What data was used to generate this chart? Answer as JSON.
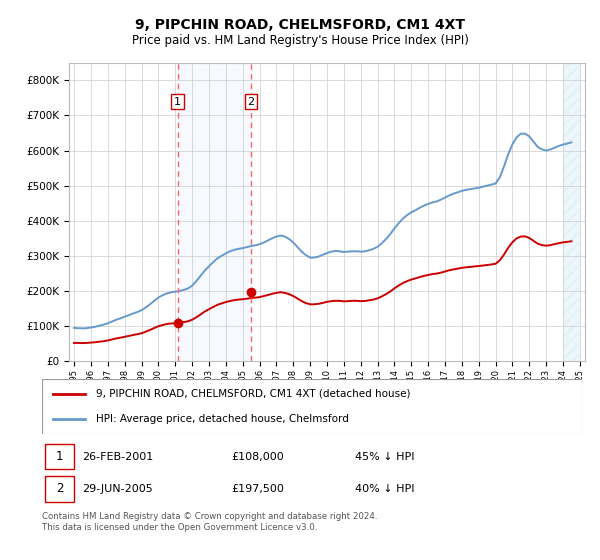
{
  "title": "9, PIPCHIN ROAD, CHELMSFORD, CM1 4XT",
  "subtitle": "Price paid vs. HM Land Registry's House Price Index (HPI)",
  "ylim": [
    0,
    850000
  ],
  "yticks": [
    0,
    100000,
    200000,
    300000,
    400000,
    500000,
    600000,
    700000,
    800000
  ],
  "ytick_labels": [
    "£0",
    "£100K",
    "£200K",
    "£300K",
    "£400K",
    "£500K",
    "£600K",
    "£700K",
    "£800K"
  ],
  "marker1_year": 2001.15,
  "marker2_year": 2005.49,
  "marker1_value": 108000,
  "marker2_value": 197500,
  "sale1_date": "26-FEB-2001",
  "sale1_price": "£108,000",
  "sale1_hpi": "45% ↓ HPI",
  "sale2_date": "29-JUN-2005",
  "sale2_price": "£197,500",
  "sale2_hpi": "40% ↓ HPI",
  "red_line_color": "#cc0000",
  "blue_line_color": "#6699cc",
  "shade_color": "#ddeeff",
  "hatch_color": "#bbddee",
  "bg_color": "#ffffff",
  "grid_color": "#cccccc",
  "legend_line1": "9, PIPCHIN ROAD, CHELMSFORD, CM1 4XT (detached house)",
  "legend_line2": "HPI: Average price, detached house, Chelmsford",
  "footer": "Contains HM Land Registry data © Crown copyright and database right 2024.\nThis data is licensed under the Open Government Licence v3.0.",
  "hpi_years": [
    1995.0,
    1995.25,
    1995.5,
    1995.75,
    1996.0,
    1996.25,
    1996.5,
    1996.75,
    1997.0,
    1997.25,
    1997.5,
    1997.75,
    1998.0,
    1998.25,
    1998.5,
    1998.75,
    1999.0,
    1999.25,
    1999.5,
    1999.75,
    2000.0,
    2000.25,
    2000.5,
    2000.75,
    2001.0,
    2001.25,
    2001.5,
    2001.75,
    2002.0,
    2002.25,
    2002.5,
    2002.75,
    2003.0,
    2003.25,
    2003.5,
    2003.75,
    2004.0,
    2004.25,
    2004.5,
    2004.75,
    2005.0,
    2005.25,
    2005.5,
    2005.75,
    2006.0,
    2006.25,
    2006.5,
    2006.75,
    2007.0,
    2007.25,
    2007.5,
    2007.75,
    2008.0,
    2008.25,
    2008.5,
    2008.75,
    2009.0,
    2009.25,
    2009.5,
    2009.75,
    2010.0,
    2010.25,
    2010.5,
    2010.75,
    2011.0,
    2011.25,
    2011.5,
    2011.75,
    2012.0,
    2012.25,
    2012.5,
    2012.75,
    2013.0,
    2013.25,
    2013.5,
    2013.75,
    2014.0,
    2014.25,
    2014.5,
    2014.75,
    2015.0,
    2015.25,
    2015.5,
    2015.75,
    2016.0,
    2016.25,
    2016.5,
    2016.75,
    2017.0,
    2017.25,
    2017.5,
    2017.75,
    2018.0,
    2018.25,
    2018.5,
    2018.75,
    2019.0,
    2019.25,
    2019.5,
    2019.75,
    2020.0,
    2020.25,
    2020.5,
    2020.75,
    2021.0,
    2021.25,
    2021.5,
    2021.75,
    2022.0,
    2022.25,
    2022.5,
    2022.75,
    2023.0,
    2023.25,
    2023.5,
    2023.75,
    2024.0,
    2024.25,
    2024.5
  ],
  "hpi_values": [
    95000,
    94000,
    93500,
    94000,
    96000,
    98000,
    101000,
    104000,
    108000,
    113000,
    118000,
    122000,
    127000,
    131000,
    136000,
    140000,
    145000,
    153000,
    162000,
    172000,
    181000,
    188000,
    193000,
    196000,
    198000,
    200000,
    203000,
    207000,
    215000,
    228000,
    243000,
    258000,
    270000,
    282000,
    293000,
    300000,
    307000,
    313000,
    317000,
    320000,
    322000,
    325000,
    328000,
    330000,
    333000,
    338000,
    344000,
    350000,
    355000,
    358000,
    355000,
    348000,
    338000,
    325000,
    312000,
    302000,
    295000,
    295000,
    298000,
    303000,
    308000,
    312000,
    314000,
    313000,
    311000,
    312000,
    313000,
    313000,
    312000,
    313000,
    316000,
    320000,
    326000,
    336000,
    348000,
    362000,
    378000,
    393000,
    406000,
    416000,
    424000,
    430000,
    437000,
    443000,
    448000,
    452000,
    455000,
    460000,
    466000,
    472000,
    477000,
    481000,
    485000,
    488000,
    490000,
    492000,
    494000,
    497000,
    500000,
    503000,
    506000,
    524000,
    555000,
    590000,
    618000,
    638000,
    648000,
    648000,
    640000,
    625000,
    610000,
    603000,
    600000,
    603000,
    608000,
    613000,
    617000,
    620000,
    623000
  ],
  "hpi_indexed_years": [
    1995.0,
    1995.25,
    1995.5,
    1995.75,
    1996.0,
    1996.25,
    1996.5,
    1996.75,
    1997.0,
    1997.25,
    1997.5,
    1997.75,
    1998.0,
    1998.25,
    1998.5,
    1998.75,
    1999.0,
    1999.25,
    1999.5,
    1999.75,
    2000.0,
    2000.25,
    2000.5,
    2000.75,
    2001.0,
    2001.25,
    2001.5,
    2001.75,
    2002.0,
    2002.25,
    2002.5,
    2002.75,
    2003.0,
    2003.25,
    2003.5,
    2003.75,
    2004.0,
    2004.25,
    2004.5,
    2004.75,
    2005.0,
    2005.25,
    2005.5,
    2005.75,
    2006.0,
    2006.25,
    2006.5,
    2006.75,
    2007.0,
    2007.25,
    2007.5,
    2007.75,
    2008.0,
    2008.25,
    2008.5,
    2008.75,
    2009.0,
    2009.25,
    2009.5,
    2009.75,
    2010.0,
    2010.25,
    2010.5,
    2010.75,
    2011.0,
    2011.25,
    2011.5,
    2011.75,
    2012.0,
    2012.25,
    2012.5,
    2012.75,
    2013.0,
    2013.25,
    2013.5,
    2013.75,
    2014.0,
    2014.25,
    2014.5,
    2014.75,
    2015.0,
    2015.25,
    2015.5,
    2015.75,
    2016.0,
    2016.25,
    2016.5,
    2016.75,
    2017.0,
    2017.25,
    2017.5,
    2017.75,
    2018.0,
    2018.25,
    2018.5,
    2018.75,
    2019.0,
    2019.25,
    2019.5,
    2019.75,
    2020.0,
    2020.25,
    2020.5,
    2020.75,
    2021.0,
    2021.25,
    2021.5,
    2021.75,
    2022.0,
    2022.25,
    2022.5,
    2022.75,
    2023.0,
    2023.25,
    2023.5,
    2023.75,
    2024.0,
    2024.25,
    2024.5
  ],
  "hpi_indexed_values": [
    52000,
    52000,
    51500,
    52000,
    53000,
    54000,
    55500,
    57000,
    59000,
    62000,
    65000,
    67000,
    69500,
    72000,
    74500,
    77000,
    79500,
    84000,
    89000,
    94500,
    99500,
    103000,
    106000,
    107500,
    108000,
    109500,
    111500,
    113500,
    118000,
    125000,
    133000,
    141500,
    148000,
    154500,
    160500,
    164500,
    168500,
    171500,
    174000,
    175500,
    176500,
    178000,
    180000,
    181000,
    182500,
    185500,
    188500,
    192000,
    194500,
    196500,
    194500,
    191000,
    185500,
    178500,
    171000,
    165500,
    162000,
    162000,
    163500,
    166000,
    169000,
    171000,
    172000,
    172000,
    170500,
    171000,
    172000,
    172000,
    171000,
    171500,
    173500,
    175500,
    179000,
    184500,
    191000,
    198500,
    207500,
    215500,
    222500,
    228000,
    232500,
    236000,
    239500,
    243000,
    245500,
    248000,
    249500,
    252000,
    255500,
    259000,
    261500,
    263500,
    266000,
    267500,
    268500,
    270000,
    271000,
    272500,
    274000,
    275500,
    277500,
    287500,
    304000,
    323500,
    339000,
    350000,
    355000,
    355500,
    351000,
    342500,
    334500,
    330500,
    329000,
    330500,
    333500,
    336000,
    338500,
    340000,
    341500
  ]
}
